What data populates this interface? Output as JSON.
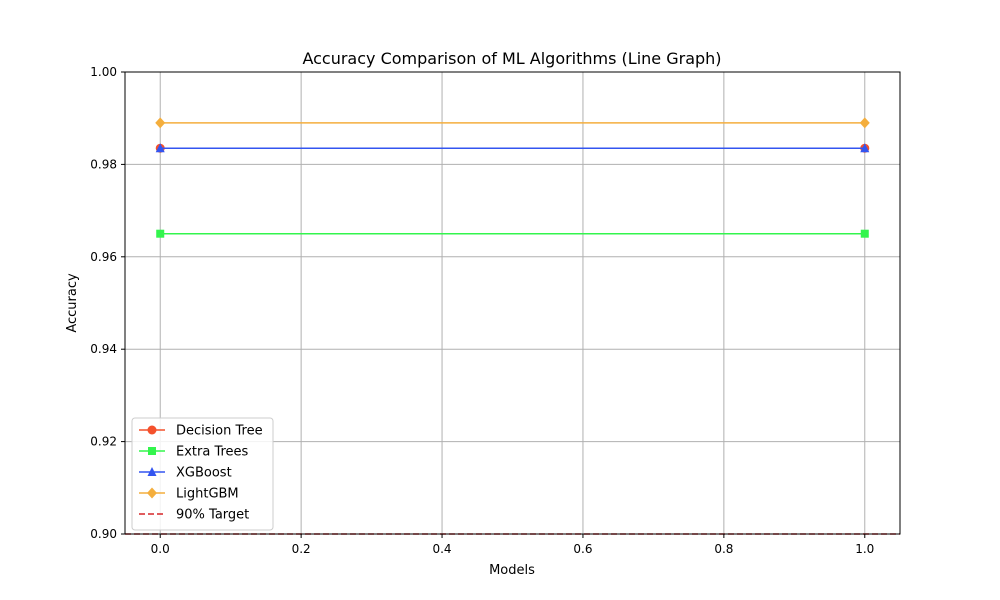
{
  "chart_data": {
    "type": "line",
    "title": "Accuracy Comparison of ML Algorithms (Line Graph)",
    "xlabel": "Models",
    "ylabel": "Accuracy",
    "xlim": [
      -0.05,
      1.05
    ],
    "ylim": [
      0.9,
      1.0
    ],
    "x_ticks": [
      0.0,
      0.2,
      0.4,
      0.6,
      0.8,
      1.0
    ],
    "x_tick_labels": [
      "0.0",
      "0.2",
      "0.4",
      "0.6",
      "0.8",
      "1.0"
    ],
    "y_ticks": [
      0.9,
      0.92,
      0.94,
      0.96,
      0.98,
      1.0
    ],
    "y_tick_labels": [
      "0.90",
      "0.92",
      "0.94",
      "0.96",
      "0.98",
      "1.00"
    ],
    "grid": true,
    "legend_position": "lower-left",
    "x": [
      0,
      1
    ],
    "series": [
      {
        "name": "Decision Tree",
        "values": [
          0.9835,
          0.9835
        ],
        "color": "#f4512c",
        "marker": "circle"
      },
      {
        "name": "Extra Trees",
        "values": [
          0.965,
          0.965
        ],
        "color": "#33f54d",
        "marker": "square"
      },
      {
        "name": "XGBoost",
        "values": [
          0.9835,
          0.9835
        ],
        "color": "#3355f0",
        "marker": "triangle"
      },
      {
        "name": "LightGBM",
        "values": [
          0.989,
          0.989
        ],
        "color": "#f4ae3d",
        "marker": "diamond"
      }
    ],
    "reference_lines": [
      {
        "name": "90% Target",
        "y": 0.9,
        "color": "#d62728",
        "style": "dashed"
      }
    ]
  }
}
